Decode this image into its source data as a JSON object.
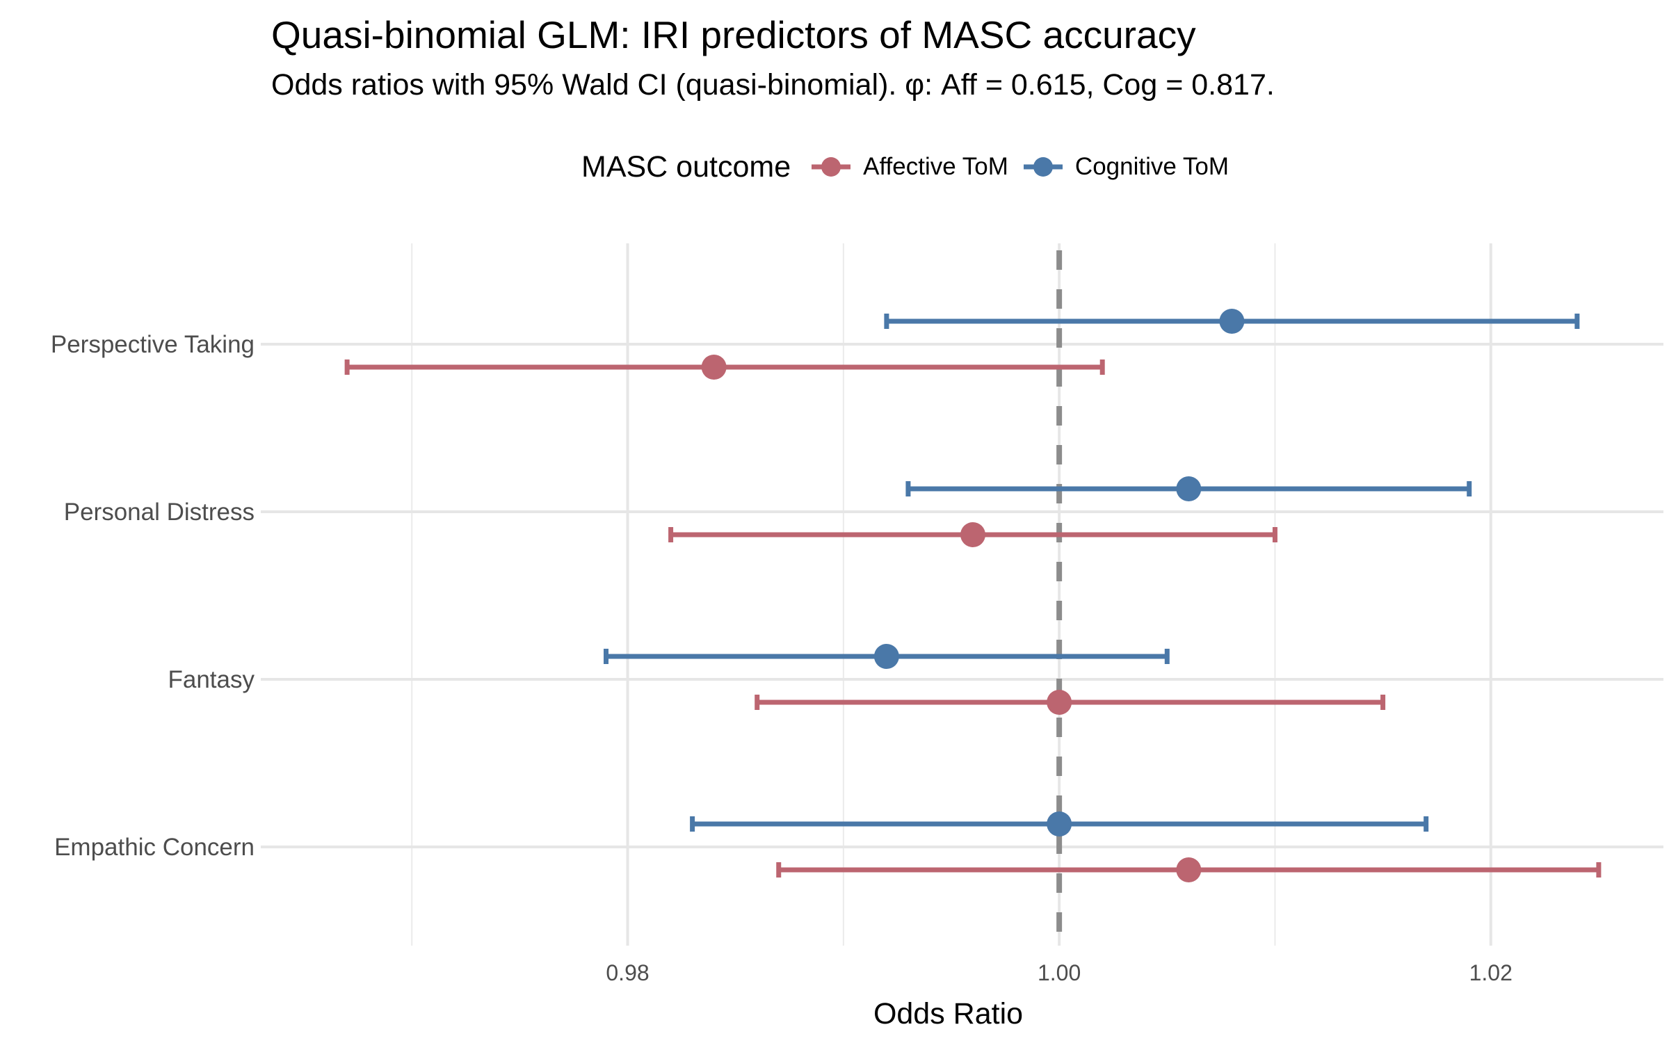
{
  "chart_data": {
    "type": "forest",
    "title": "Quasi-binomial GLM: IRI predictors of MASC accuracy",
    "subtitle": "Odds ratios with 95% Wald CI (quasi-binomial).  φ: Aff = 0.615, Cog = 0.817.",
    "xlabel": "Odds Ratio",
    "ylabel": "",
    "xlim": [
      0.963,
      1.028
    ],
    "x_ticks": [
      0.98,
      1.0,
      1.02
    ],
    "x_tick_labels": [
      "0.98",
      "1.00",
      "1.02"
    ],
    "x_minor_ticks": [
      0.97,
      0.99,
      1.01
    ],
    "reference_line": 1.0,
    "grid": true,
    "legend_title": "MASC outcome",
    "legend_position": "top",
    "categories": [
      "Perspective Taking",
      "Personal Distress",
      "Fantasy",
      "Empathic Concern"
    ],
    "series": [
      {
        "name": "Affective ToM",
        "color": "#BC6570",
        "estimate": [
          0.984,
          0.996,
          1.0,
          1.006
        ],
        "ci_low": [
          0.967,
          0.982,
          0.986,
          0.987
        ],
        "ci_high": [
          1.002,
          1.01,
          1.015,
          1.025
        ]
      },
      {
        "name": "Cognitive ToM",
        "color": "#4A78A8",
        "estimate": [
          1.008,
          1.006,
          0.992,
          1.0
        ],
        "ci_low": [
          0.992,
          0.993,
          0.979,
          0.983
        ],
        "ci_high": [
          1.024,
          1.019,
          1.005,
          1.017
        ]
      }
    ]
  }
}
